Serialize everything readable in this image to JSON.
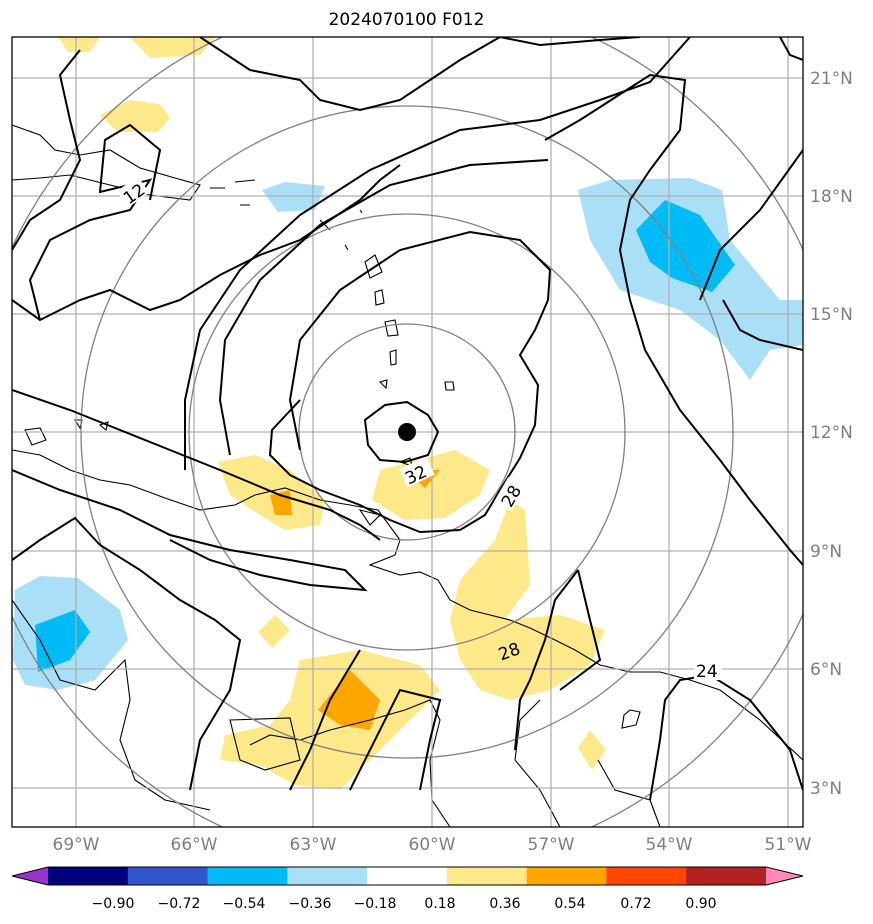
{
  "title": "2024070100 F012",
  "map": {
    "lat_labels": [
      "21°N",
      "18°N",
      "15°N",
      "12°N",
      "9°N",
      "6°N",
      "3°N"
    ],
    "lon_labels": [
      "69°W",
      "66°W",
      "63°W",
      "60°W",
      "57°W",
      "54°W",
      "51°W"
    ],
    "contour_labels": [
      "12",
      "32",
      "28",
      "28",
      "24"
    ],
    "storm_center": "12°N 60.6°W"
  },
  "colorbar": {
    "ticks": [
      "−0.90",
      "−0.72",
      "−0.54",
      "−0.36",
      "−0.18",
      "0.18",
      "0.36",
      "0.54",
      "0.72",
      "0.90"
    ],
    "colors": [
      "#9a33cc",
      "#00007f",
      "#3355cc",
      "#00bbf5",
      "#aadff8",
      "#ffffff",
      "#fde98a",
      "#ffa500",
      "#ff4500",
      "#b22222",
      "#ff88bb"
    ]
  }
}
